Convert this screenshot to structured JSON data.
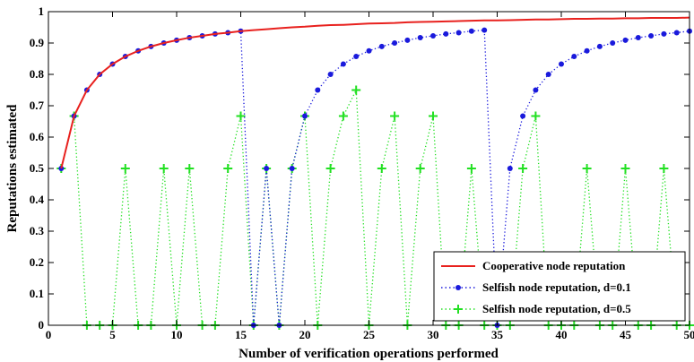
{
  "chart_data": {
    "type": "line",
    "xlabel": "Number of verification operations performed",
    "ylabel": "Reputations estimated",
    "xlim": [
      0,
      50
    ],
    "ylim": [
      0,
      1
    ],
    "xticks": [
      0,
      5,
      10,
      15,
      20,
      25,
      30,
      35,
      40,
      45,
      50
    ],
    "yticks": [
      0,
      0.1,
      0.2,
      0.3,
      0.4,
      0.5,
      0.6,
      0.7,
      0.8,
      0.9,
      1
    ],
    "grid": false,
    "legend": "bottom-right",
    "series": [
      {
        "name": "Cooperative node reputation",
        "color": "#e8211e",
        "style": "solid",
        "marker": "none",
        "x": [
          1,
          2,
          3,
          4,
          5,
          6,
          7,
          8,
          9,
          10,
          11,
          12,
          13,
          14,
          15,
          16,
          17,
          18,
          19,
          20,
          21,
          22,
          23,
          24,
          25,
          26,
          27,
          28,
          29,
          30,
          31,
          32,
          33,
          34,
          35,
          36,
          37,
          38,
          39,
          40,
          41,
          42,
          43,
          44,
          45,
          46,
          47,
          48,
          49,
          50
        ],
        "y": [
          0.5,
          0.667,
          0.75,
          0.8,
          0.833,
          0.857,
          0.875,
          0.889,
          0.9,
          0.909,
          0.917,
          0.923,
          0.929,
          0.933,
          0.938,
          0.941,
          0.944,
          0.947,
          0.95,
          0.952,
          0.955,
          0.957,
          0.958,
          0.96,
          0.962,
          0.963,
          0.964,
          0.966,
          0.967,
          0.968,
          0.969,
          0.97,
          0.971,
          0.972,
          0.972,
          0.973,
          0.974,
          0.975,
          0.975,
          0.976,
          0.977,
          0.977,
          0.978,
          0.978,
          0.979,
          0.979,
          0.98,
          0.98,
          0.98,
          0.981
        ]
      },
      {
        "name": "Selfish node reputation, d=0.1",
        "color": "#1a1adc",
        "style": "dotted",
        "marker": "dot",
        "x": [
          1,
          2,
          3,
          4,
          5,
          6,
          7,
          8,
          9,
          10,
          11,
          12,
          13,
          14,
          15,
          16,
          17,
          18,
          19,
          20,
          21,
          22,
          23,
          24,
          25,
          26,
          27,
          28,
          29,
          30,
          31,
          32,
          33,
          34,
          35,
          36,
          37,
          38,
          39,
          40,
          41,
          42,
          43,
          44,
          45,
          46,
          47,
          48,
          49,
          50
        ],
        "y": [
          0.5,
          0.667,
          0.75,
          0.8,
          0.833,
          0.857,
          0.875,
          0.889,
          0.9,
          0.909,
          0.917,
          0.923,
          0.929,
          0.933,
          0.938,
          0,
          0.5,
          0,
          0.5,
          0.667,
          0.75,
          0.8,
          0.833,
          0.857,
          0.875,
          0.889,
          0.9,
          0.909,
          0.917,
          0.923,
          0.929,
          0.933,
          0.938,
          0.941,
          0,
          0.5,
          0.667,
          0.75,
          0.8,
          0.833,
          0.857,
          0.875,
          0.889,
          0.9,
          0.909,
          0.917,
          0.923,
          0.929,
          0.933,
          0.938
        ]
      },
      {
        "name": "Selfish node reputation, d=0.5",
        "color": "#22e022",
        "style": "dotted",
        "marker": "plus",
        "x": [
          1,
          2,
          3,
          4,
          5,
          6,
          7,
          8,
          9,
          10,
          11,
          12,
          13,
          14,
          15,
          16,
          17,
          18,
          19,
          20,
          21,
          22,
          23,
          24,
          25,
          26,
          27,
          28,
          29,
          30,
          31,
          32,
          33,
          34,
          35,
          36,
          37,
          38,
          39,
          40,
          41,
          42,
          43,
          44,
          45,
          46,
          47,
          48,
          49,
          50
        ],
        "y": [
          0.5,
          0.667,
          0,
          0,
          0,
          0.5,
          0,
          0,
          0.5,
          0,
          0.5,
          0,
          0,
          0.5,
          0.667,
          0,
          0.5,
          0,
          0.5,
          0.667,
          0,
          0.5,
          0.667,
          0.75,
          0,
          0.5,
          0.667,
          0,
          0.5,
          0.667,
          0,
          0,
          0.5,
          0,
          0,
          0,
          0.5,
          0.667,
          0,
          0,
          0,
          0.5,
          0,
          0,
          0.5,
          0,
          0,
          0.5,
          0,
          0
        ]
      }
    ]
  }
}
